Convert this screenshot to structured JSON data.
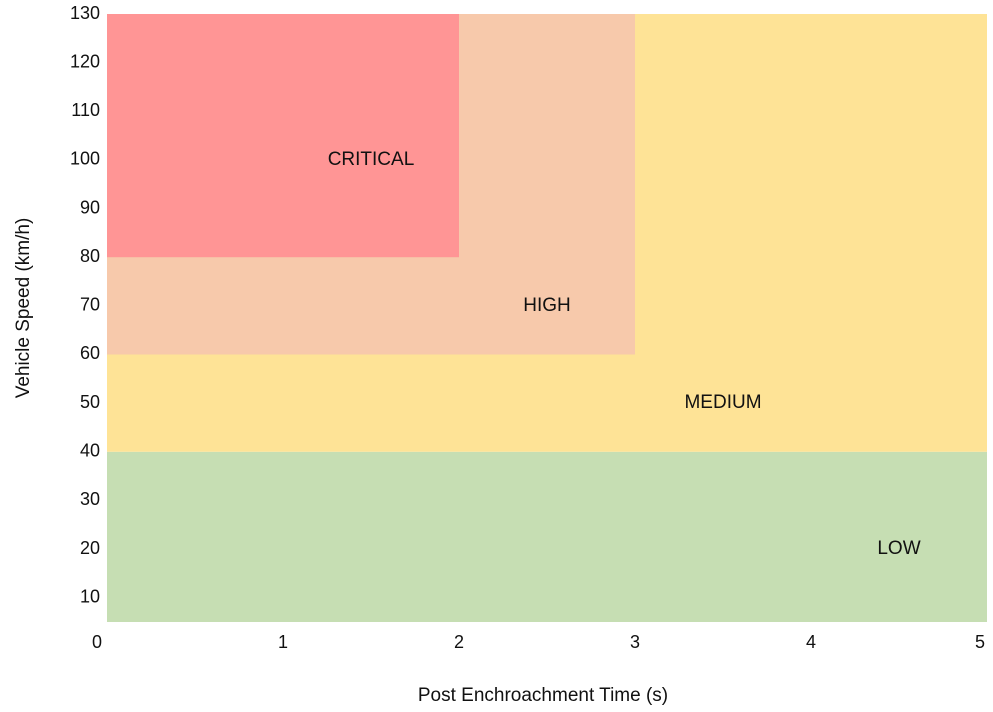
{
  "chart_data": {
    "type": "area",
    "title": "",
    "xlabel": "Post Enchroachment Time (s)",
    "ylabel": "Vehicle Speed (km/h)",
    "xlim": [
      0,
      5
    ],
    "ylim": [
      5,
      130
    ],
    "xticks": [
      "0",
      "1",
      "2",
      "3",
      "4",
      "5"
    ],
    "yticks": [
      "10",
      "20",
      "30",
      "40",
      "50",
      "60",
      "70",
      "80",
      "90",
      "100",
      "110",
      "120",
      "130"
    ],
    "grid": false,
    "zones": [
      {
        "name": "LOW",
        "x": [
          0,
          5
        ],
        "y": [
          5,
          40
        ],
        "color": "#c6deb3",
        "label_at": [
          4.5,
          20
        ]
      },
      {
        "name": "MEDIUM",
        "x": [
          0,
          5
        ],
        "y": [
          40,
          130
        ],
        "color": "#fee396",
        "label_at": [
          3.5,
          50
        ]
      },
      {
        "name": "HIGH",
        "x": [
          0,
          3
        ],
        "y": [
          60,
          130
        ],
        "color": "#f7c9ab",
        "label_at": [
          2.5,
          70
        ]
      },
      {
        "name": "CRITICAL",
        "x": [
          0,
          2
        ],
        "y": [
          80,
          130
        ],
        "color": "#ff9595",
        "label_at": [
          1.5,
          100
        ]
      }
    ]
  }
}
